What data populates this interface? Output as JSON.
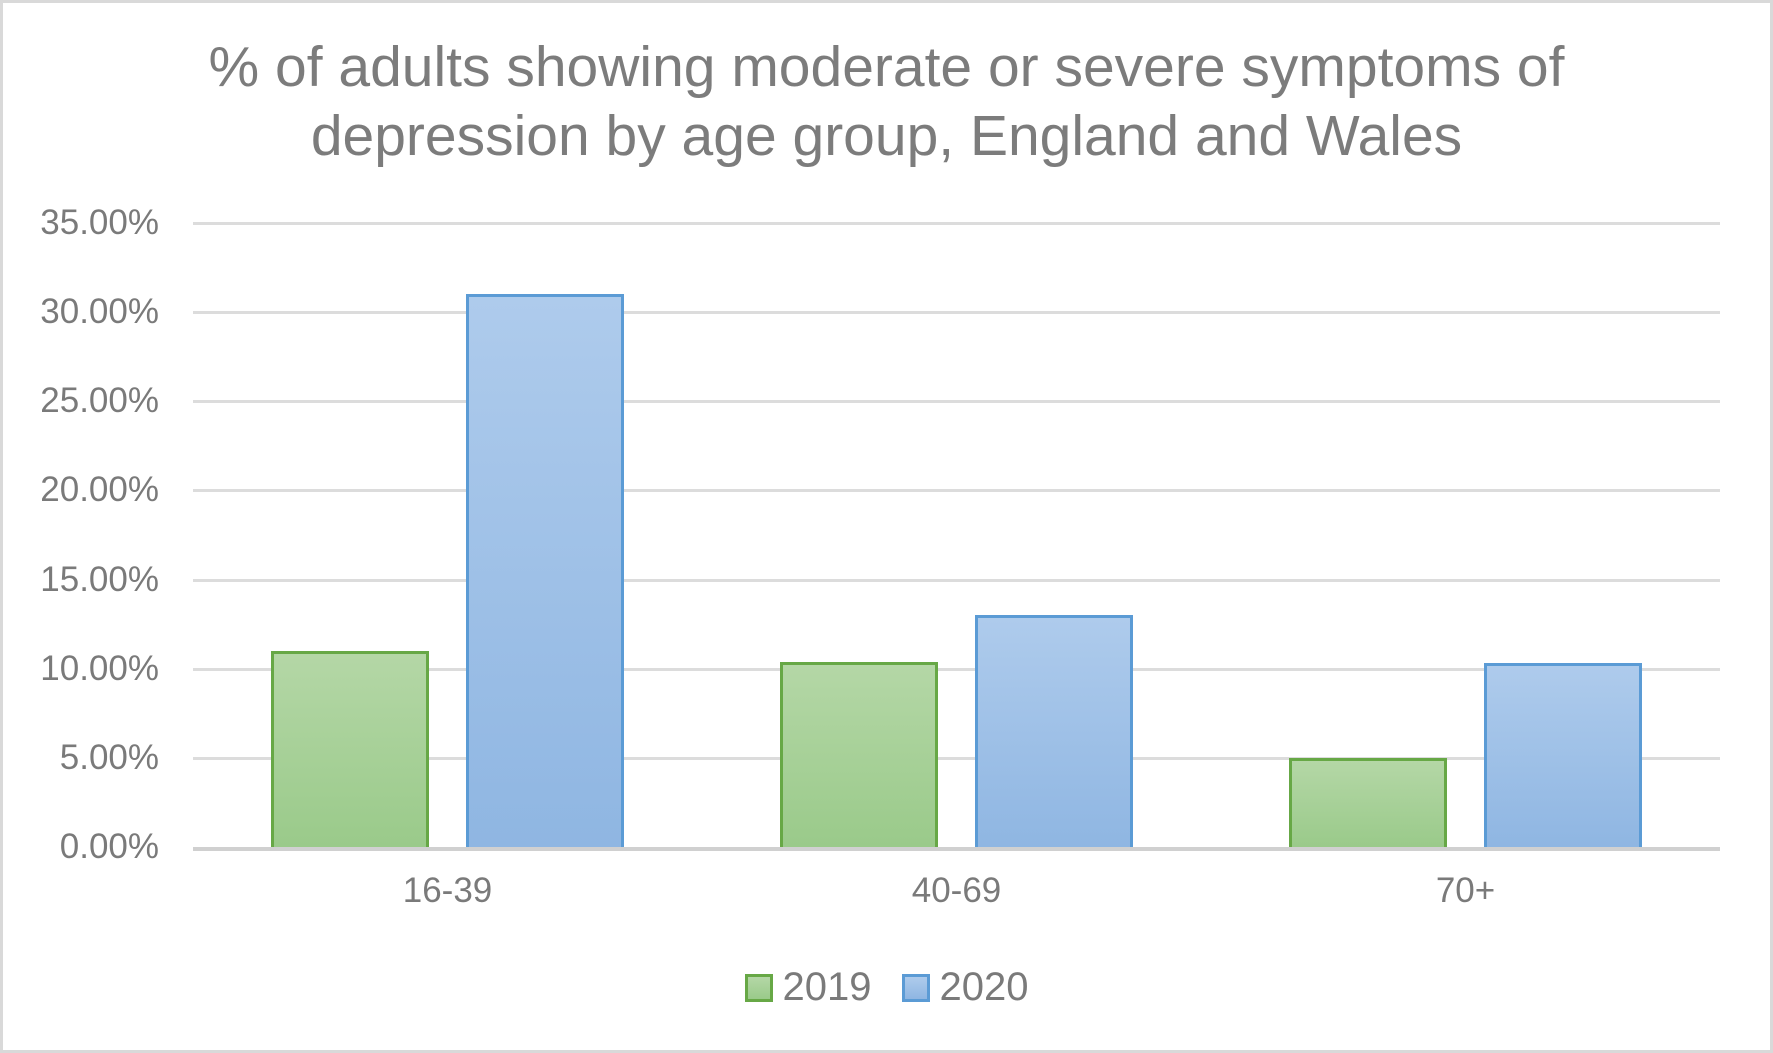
{
  "chart": {
    "title_lines": [
      "% of adults showing moderate or severe symptoms of",
      "depression by age group, England and Wales"
    ]
  },
  "chart_data": {
    "type": "bar",
    "title": "% of adults showing moderate or severe symptoms of depression by age group, England and Wales",
    "categories": [
      "16-39",
      "40-69",
      "70+"
    ],
    "series": [
      {
        "name": "2019",
        "values": [
          11.0,
          10.4,
          5.0
        ],
        "color_fill_top": "#b4d7a6",
        "color_fill_bottom": "#9aca8a",
        "color_border": "#67a846"
      },
      {
        "name": "2020",
        "values": [
          31.0,
          13.0,
          10.3
        ],
        "color_fill_top": "#aecbec",
        "color_fill_bottom": "#8fb6e2",
        "color_border": "#5b9bd5"
      }
    ],
    "ylim": [
      0,
      35
    ],
    "ytick_step": 5,
    "ytick_labels": [
      "0.00%",
      "5.00%",
      "10.00%",
      "15.00%",
      "20.00%",
      "25.00%",
      "30.00%",
      "35.00%"
    ],
    "xlabel": "",
    "ylabel": "",
    "grid": true,
    "legend_position": "bottom"
  },
  "colors": {
    "background": "#ffffff",
    "frame_border": "#d9d9d9",
    "title_text": "#7c7c7c",
    "axis_text": "#7a7a7a",
    "gridline": "#dcdcdc",
    "axis_line": "#d0d0d0"
  }
}
